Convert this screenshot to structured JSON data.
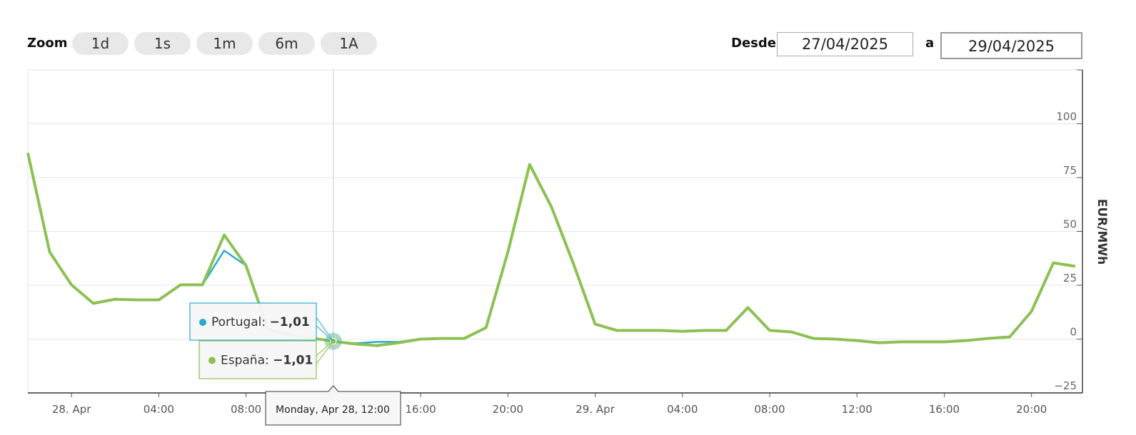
{
  "chart_data": {
    "type": "line",
    "controls": {
      "zoom_label": "Zoom",
      "zoom_buttons": [
        "1d",
        "1s",
        "1m",
        "6m",
        "1A"
      ],
      "from_label": "Desde",
      "from_date": "27/04/2025",
      "to_label": "a",
      "to_date": "29/04/2025"
    },
    "y_axis_label": "EUR/MWh",
    "x": [
      "2025-04-27T22:00",
      "2025-04-27T23:00",
      "2025-04-28T00:00",
      "2025-04-28T01:00",
      "2025-04-28T02:00",
      "2025-04-28T03:00",
      "2025-04-28T04:00",
      "2025-04-28T05:00",
      "2025-04-28T06:00",
      "2025-04-28T07:00",
      "2025-04-28T08:00",
      "2025-04-28T09:00",
      "2025-04-28T10:00",
      "2025-04-28T11:00",
      "2025-04-28T12:00",
      "2025-04-28T13:00",
      "2025-04-28T14:00",
      "2025-04-28T15:00",
      "2025-04-28T16:00",
      "2025-04-28T17:00",
      "2025-04-28T18:00",
      "2025-04-28T19:00",
      "2025-04-28T20:00",
      "2025-04-28T21:00",
      "2025-04-28T22:00",
      "2025-04-28T23:00",
      "2025-04-29T00:00",
      "2025-04-29T01:00",
      "2025-04-29T02:00",
      "2025-04-29T03:00",
      "2025-04-29T04:00",
      "2025-04-29T05:00",
      "2025-04-29T06:00",
      "2025-04-29T07:00",
      "2025-04-29T08:00",
      "2025-04-29T09:00",
      "2025-04-29T10:00",
      "2025-04-29T11:00",
      "2025-04-29T12:00",
      "2025-04-29T13:00",
      "2025-04-29T14:00",
      "2025-04-29T15:00",
      "2025-04-29T16:00",
      "2025-04-29T17:00",
      "2025-04-29T18:00",
      "2025-04-29T19:00",
      "2025-04-29T20:00",
      "2025-04-29T21:00",
      "2025-04-29T22:00"
    ],
    "series": [
      {
        "name": "Portugal",
        "color": "#27aad3",
        "values": [
          86.4,
          40.4,
          25.2,
          16.6,
          18.5,
          18.2,
          18.2,
          25.2,
          25.2,
          41.1,
          34.1,
          4.6,
          2,
          0.5,
          -1.01,
          -2,
          -1.3,
          -1.3,
          0,
          0.3,
          0.3,
          5.3,
          40.4,
          81.1,
          61.3,
          35.1,
          7,
          4,
          4,
          4,
          3.6,
          4,
          4,
          14.6,
          4,
          3.3,
          0.3,
          0,
          -0.7,
          -1.7,
          -1.3,
          -1.3,
          -1.3,
          -0.7,
          0.3,
          1,
          12.9,
          35.4,
          33.8
        ]
      },
      {
        "name": "España",
        "color": "#8cc152",
        "values": [
          86.4,
          40.4,
          25.2,
          16.6,
          18.5,
          18.2,
          18.2,
          25.2,
          25.2,
          48.3,
          34.1,
          4.6,
          2,
          0.5,
          -1.01,
          -2.3,
          -3,
          -1.7,
          0,
          0.3,
          0.3,
          5.3,
          40.4,
          81.1,
          61.3,
          35.1,
          7,
          4,
          4,
          4,
          3.6,
          4,
          4,
          14.6,
          4,
          3.3,
          0.3,
          0,
          -0.7,
          -1.7,
          -1.3,
          -1.3,
          -1.3,
          -0.7,
          0.3,
          1,
          12.9,
          35.4,
          33.8
        ]
      }
    ],
    "xlim": [
      "2025-04-27T22:00",
      "2025-04-29T22:20"
    ],
    "xticks": [
      {
        "value": "2025-04-28T00:00",
        "label": "28. Apr"
      },
      {
        "value": "2025-04-28T04:00",
        "label": "04:00"
      },
      {
        "value": "2025-04-28T08:00",
        "label": "08:00"
      },
      {
        "value": "2025-04-28T12:00",
        "label": "12:00"
      },
      {
        "value": "2025-04-28T16:00",
        "label": "16:00"
      },
      {
        "value": "2025-04-28T20:00",
        "label": "20:00"
      },
      {
        "value": "2025-04-29T00:00",
        "label": "29. Apr"
      },
      {
        "value": "2025-04-29T04:00",
        "label": "04:00"
      },
      {
        "value": "2025-04-29T08:00",
        "label": "08:00"
      },
      {
        "value": "2025-04-29T12:00",
        "label": "12:00"
      },
      {
        "value": "2025-04-29T16:00",
        "label": "16:00"
      },
      {
        "value": "2025-04-29T20:00",
        "label": "20:00"
      }
    ],
    "ylim": [
      -25,
      125
    ],
    "yticks": [
      {
        "value": -25,
        "label": "−25"
      },
      0,
      25,
      50,
      75,
      100
    ],
    "grid": true,
    "tooltip": {
      "header": "Monday, Apr 28, 12:00",
      "x": "2025-04-28T12:00",
      "value_labels": [
        "−1,01",
        "−1,01"
      ]
    }
  }
}
